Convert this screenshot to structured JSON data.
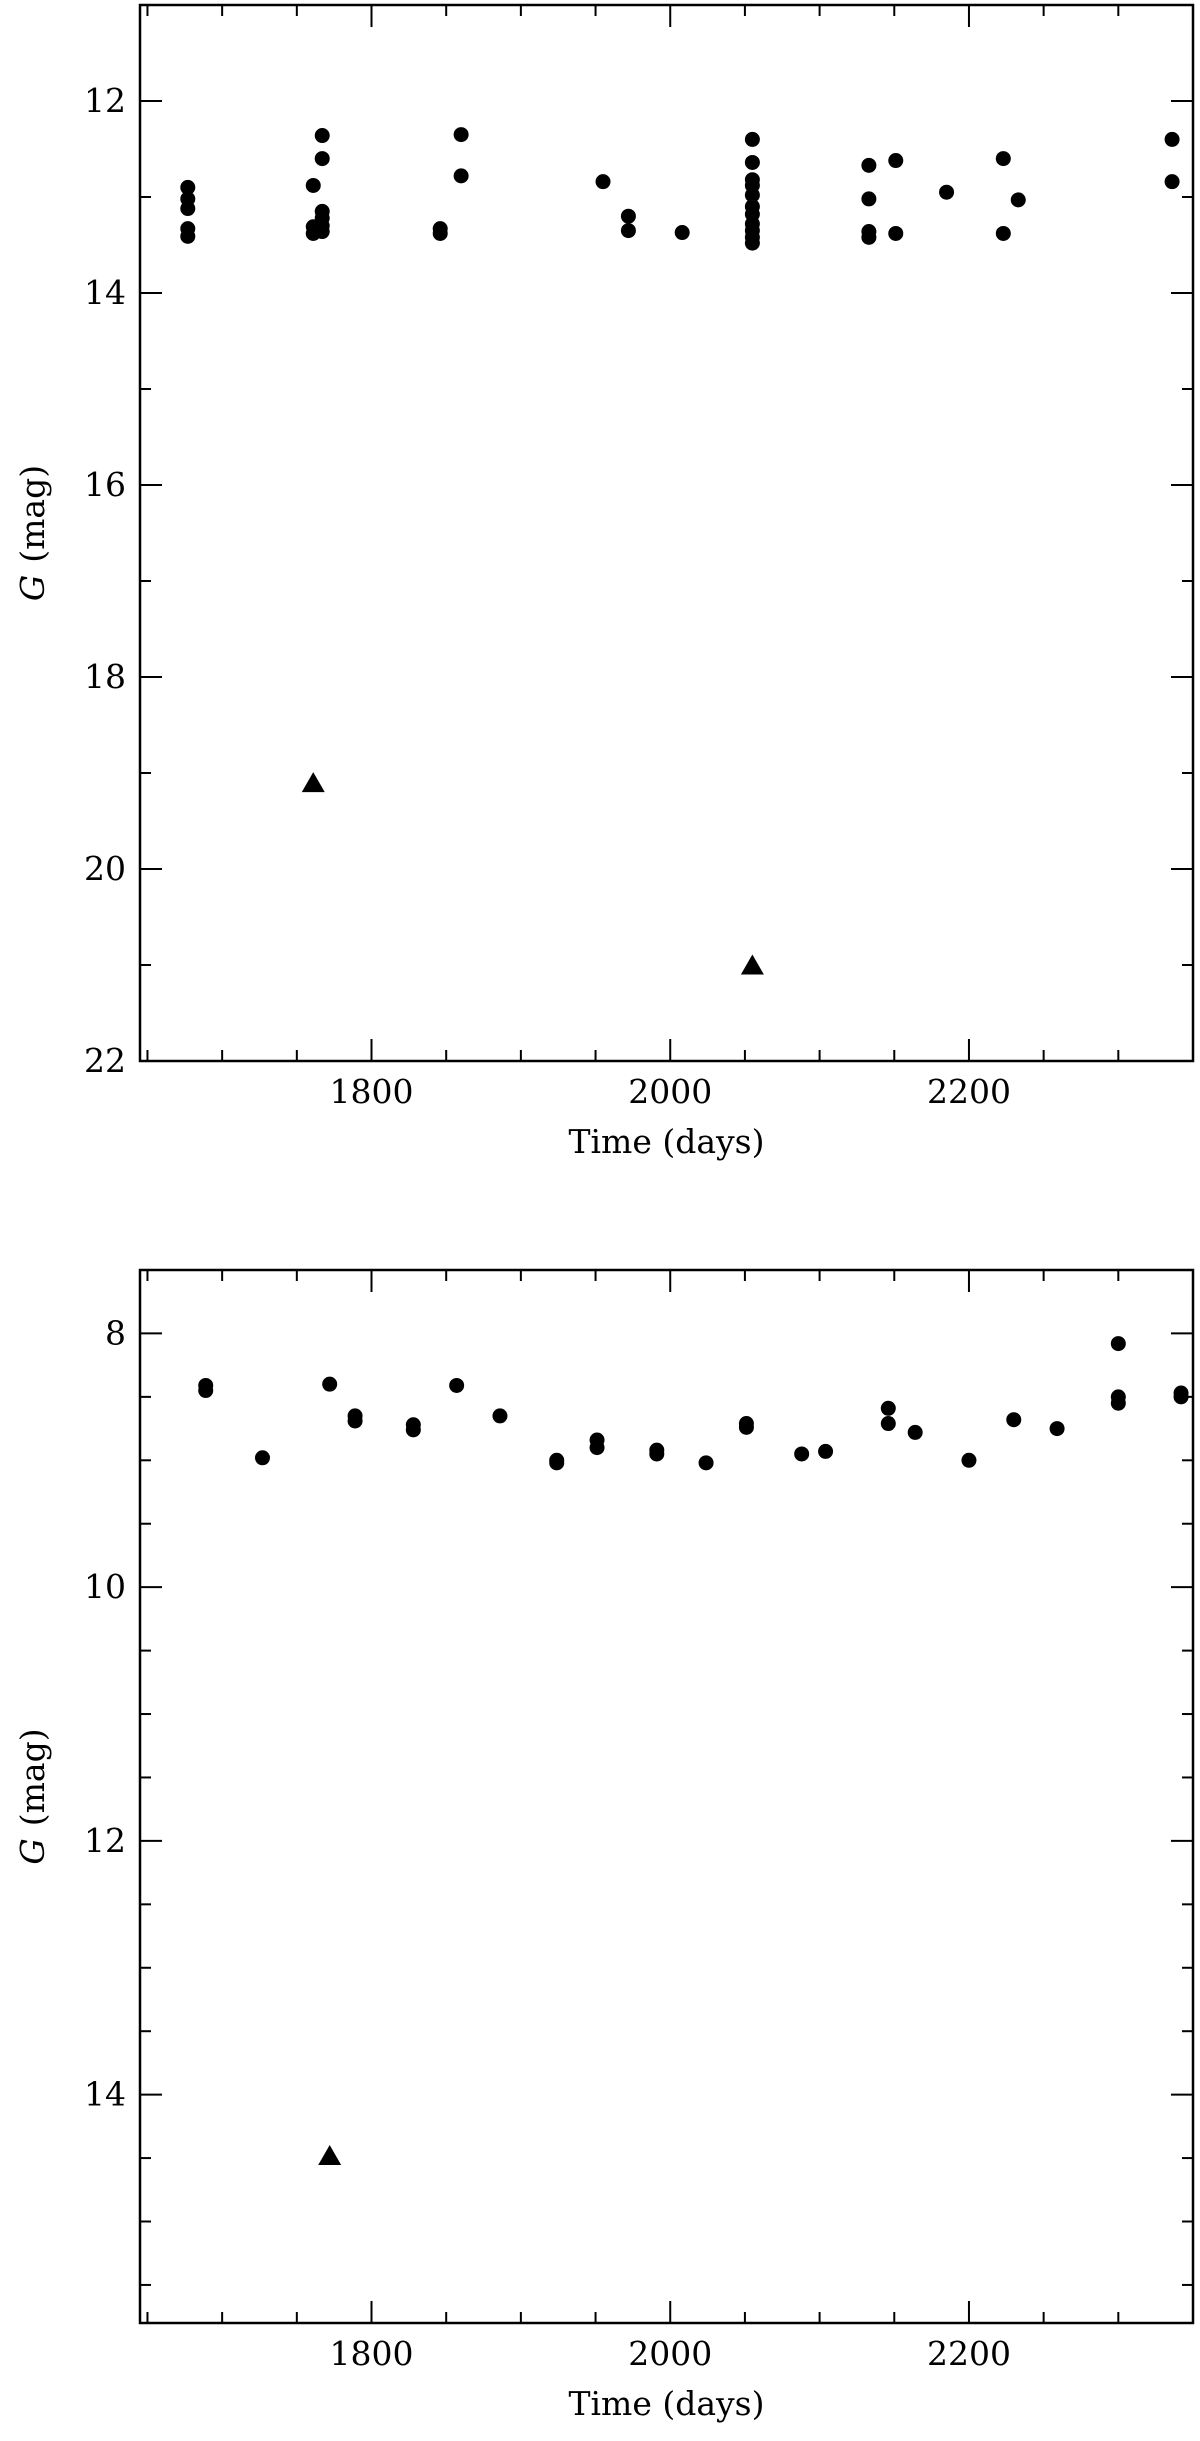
{
  "chart_data": [
    {
      "type": "scatter",
      "xlabel": "Time (days)",
      "ylabel": {
        "symbol": "G",
        "unit": "(mag)"
      },
      "xlim": [
        1645,
        2350
      ],
      "ylim": [
        22,
        11
      ],
      "y_inverted": true,
      "x_major_ticks": [
        1800,
        2000,
        2200
      ],
      "x_minor_step": 50,
      "y_major_ticks": [
        12,
        14,
        16,
        18,
        20,
        22
      ],
      "y_minor_step": 1,
      "series": [
        {
          "marker": "circle",
          "points": [
            [
              1677,
              12.9
            ],
            [
              1677,
              13.02
            ],
            [
              1677,
              13.12
            ],
            [
              1677,
              13.33
            ],
            [
              1677,
              13.41
            ],
            [
              1761,
              12.88
            ],
            [
              1761,
              13.31
            ],
            [
              1761,
              13.38
            ],
            [
              1767,
              12.36
            ],
            [
              1767,
              12.6
            ],
            [
              1767,
              13.15
            ],
            [
              1767,
              13.22
            ],
            [
              1767,
              13.3
            ],
            [
              1767,
              13.36
            ],
            [
              1846,
              13.33
            ],
            [
              1846,
              13.38
            ],
            [
              1860,
              12.35
            ],
            [
              1860,
              12.78
            ],
            [
              1955,
              12.84
            ],
            [
              1972,
              13.2
            ],
            [
              1972,
              13.35
            ],
            [
              2008,
              13.37
            ],
            [
              2055,
              12.4
            ],
            [
              2055,
              12.64
            ],
            [
              2055,
              12.82
            ],
            [
              2055,
              12.88
            ],
            [
              2055,
              12.98
            ],
            [
              2055,
              13.1
            ],
            [
              2055,
              13.18
            ],
            [
              2055,
              13.28
            ],
            [
              2055,
              13.35
            ],
            [
              2055,
              13.42
            ],
            [
              2055,
              13.48
            ],
            [
              2133,
              12.67
            ],
            [
              2133,
              13.02
            ],
            [
              2133,
              13.36
            ],
            [
              2133,
              13.42
            ],
            [
              2151,
              12.62
            ],
            [
              2151,
              13.38
            ],
            [
              2185,
              12.95
            ],
            [
              2223,
              12.6
            ],
            [
              2223,
              13.38
            ],
            [
              2233,
              13.03
            ],
            [
              2336,
              12.4
            ],
            [
              2336,
              12.84
            ]
          ]
        },
        {
          "marker": "triangle",
          "points": [
            [
              1761,
              19.1
            ],
            [
              2055,
              21.0
            ]
          ]
        }
      ]
    },
    {
      "type": "scatter",
      "xlabel": "Time (days)",
      "ylabel": {
        "symbol": "G",
        "unit": "(mag)"
      },
      "xlim": [
        1645,
        2350
      ],
      "ylim": [
        15.8,
        7.5
      ],
      "y_inverted": true,
      "x_major_ticks": [
        1800,
        2000,
        2200
      ],
      "x_minor_step": 50,
      "y_major_ticks": [
        8,
        10,
        12,
        14
      ],
      "y_minor_step": 0.5,
      "series": [
        {
          "marker": "circle",
          "points": [
            [
              1689,
              8.41
            ],
            [
              1689,
              8.45
            ],
            [
              1727,
              8.98
            ],
            [
              1772,
              8.4
            ],
            [
              1789,
              8.65
            ],
            [
              1789,
              8.69
            ],
            [
              1828,
              8.72
            ],
            [
              1828,
              8.76
            ],
            [
              1857,
              8.41
            ],
            [
              1886,
              8.65
            ],
            [
              1924,
              9.0
            ],
            [
              1924,
              9.02
            ],
            [
              1951,
              8.84
            ],
            [
              1951,
              8.9
            ],
            [
              1991,
              8.92
            ],
            [
              1991,
              8.95
            ],
            [
              2024,
              9.02
            ],
            [
              2051,
              8.71
            ],
            [
              2051,
              8.74
            ],
            [
              2088,
              8.95
            ],
            [
              2104,
              8.93
            ],
            [
              2146,
              8.59
            ],
            [
              2146,
              8.71
            ],
            [
              2164,
              8.78
            ],
            [
              2200,
              9.0
            ],
            [
              2230,
              8.68
            ],
            [
              2259,
              8.75
            ],
            [
              2300,
              8.08
            ],
            [
              2300,
              8.5
            ],
            [
              2300,
              8.55
            ],
            [
              2342,
              8.47
            ],
            [
              2342,
              8.5
            ]
          ]
        },
        {
          "marker": "triangle",
          "points": [
            [
              1772,
              14.48
            ]
          ]
        }
      ]
    }
  ]
}
